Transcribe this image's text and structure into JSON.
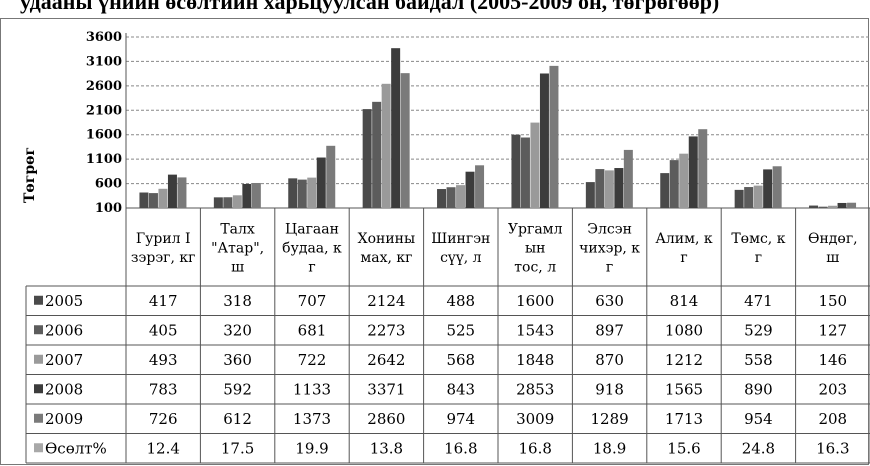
{
  "chart_data": {
    "type": "bar",
    "title": "удааны үнийн өсөлтийн харьцуулсан байдал (2005-2009 он, төгрөгөөр)",
    "ylabel": "Төгрөг",
    "xlabel": "",
    "ylim": [
      100,
      3600
    ],
    "yticks": [
      100,
      600,
      1100,
      1600,
      2100,
      2600,
      3100,
      3600
    ],
    "grid": "horizontal-dashed",
    "legend": "left, in data table",
    "categories": [
      "Гурил I зэрэг, кг",
      "Талх \"Атар\", ш",
      "Цагаан будаа, кг",
      "Хонины мах, кг",
      "Шингэн сүү, л",
      "Ургамлын тос, л",
      "Элсэн чихэр, кг",
      "Алим, кг",
      "Төмс, кг",
      "Өндөг, ш"
    ],
    "category_lines": [
      [
        "Гурил I",
        "зэрэг, кг"
      ],
      [
        "Талх",
        "\"Атар\",",
        "ш"
      ],
      [
        "Цагаан",
        "будаа, к",
        "г"
      ],
      [
        "Хонины",
        "мах, кг"
      ],
      [
        "Шингэн",
        "сүү, л"
      ],
      [
        "Ургамл",
        "ын",
        "тос, л"
      ],
      [
        "Элсэн",
        "чихэр, к",
        "г"
      ],
      [
        "Алим, к",
        "г"
      ],
      [
        "Төмс, к",
        "г"
      ],
      [
        "Өндөг,",
        "ш"
      ]
    ],
    "series": [
      {
        "name": "2005",
        "color": "#4a4a4a",
        "values": [
          417,
          318,
          707,
          2124,
          488,
          1600,
          630,
          814,
          471,
          150
        ]
      },
      {
        "name": "2006",
        "color": "#5c5c5c",
        "values": [
          405,
          320,
          681,
          2273,
          525,
          1543,
          897,
          1080,
          529,
          127
        ]
      },
      {
        "name": "2007",
        "color": "#9a9a9a",
        "values": [
          493,
          360,
          722,
          2642,
          568,
          1848,
          870,
          1212,
          558,
          146
        ]
      },
      {
        "name": "2008",
        "color": "#3c3c3c",
        "values": [
          783,
          592,
          1133,
          3371,
          843,
          2853,
          918,
          1565,
          890,
          203
        ]
      },
      {
        "name": "2009",
        "color": "#7a7a7a",
        "values": [
          726,
          612,
          1373,
          2860,
          974,
          3009,
          1289,
          1713,
          954,
          208
        ]
      },
      {
        "name": "Өсөлт%",
        "color": "#a8a8a8",
        "values": [
          12.4,
          17.5,
          19.9,
          13.8,
          16.8,
          16.8,
          18.9,
          15.6,
          24.8,
          16.3
        ],
        "plotted": false
      }
    ]
  }
}
